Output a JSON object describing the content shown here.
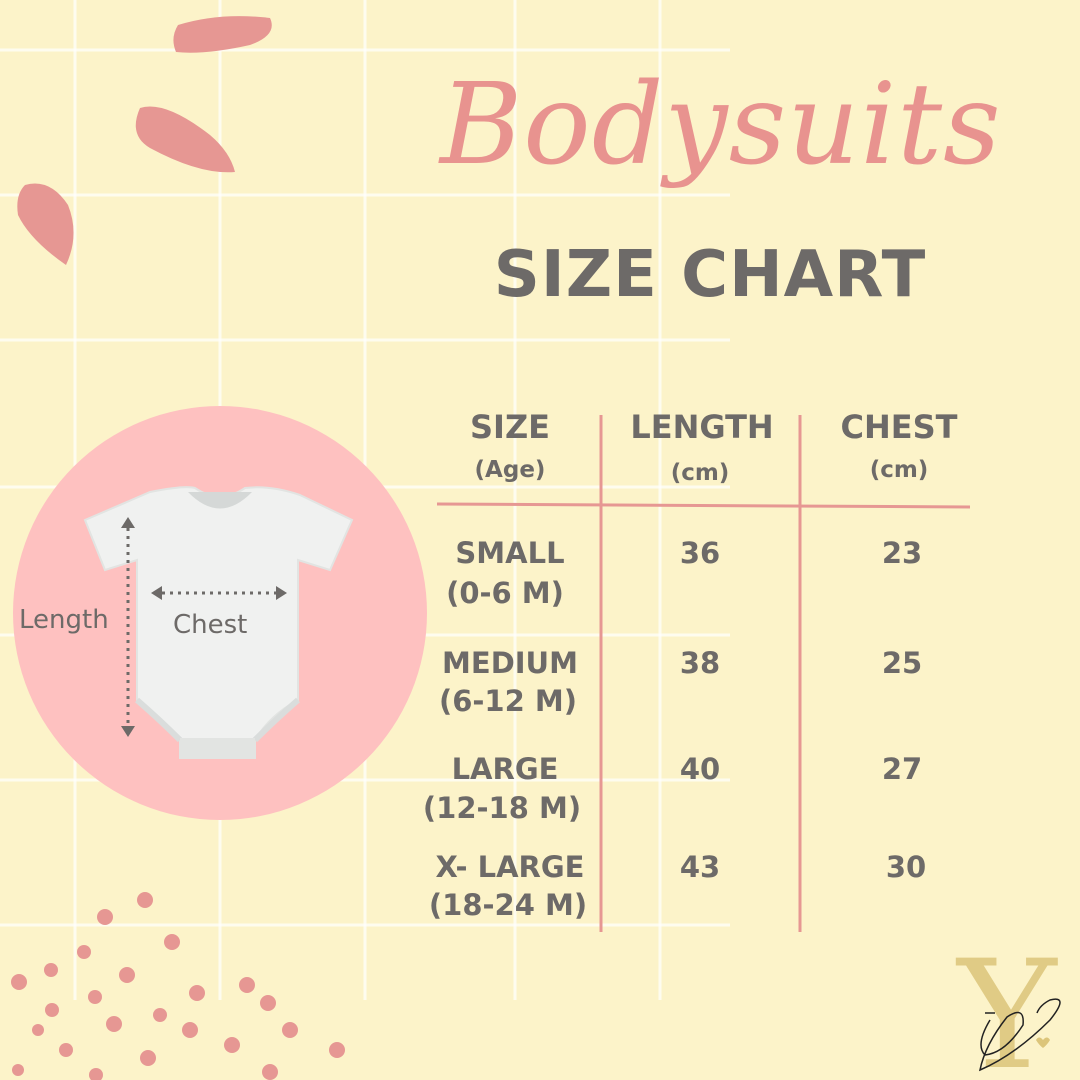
{
  "title": "Bodysuits",
  "subtitle": "SIZE CHART",
  "diagram": {
    "length_label": "Length",
    "chest_label": "Chest"
  },
  "table": {
    "headers": [
      {
        "label": "SIZE",
        "sub": "(Age)"
      },
      {
        "label": "LENGTH",
        "sub": "(cm)"
      },
      {
        "label": "CHEST",
        "sub": "(cm)"
      }
    ],
    "rows": [
      {
        "size": "SMALL",
        "age": "(0-6 M)",
        "length": "36",
        "chest": "23"
      },
      {
        "size": "MEDIUM",
        "age": "(6-12 M)",
        "length": "38",
        "chest": "25"
      },
      {
        "size": "LARGE",
        "age": "(12-18 M)",
        "length": "40",
        "chest": "27"
      },
      {
        "size": "X- LARGE",
        "age": "(18-24 M)",
        "length": "43",
        "chest": "30"
      }
    ]
  },
  "logo": {
    "text": "Y DJ"
  },
  "colors": {
    "background": "#fcf3c9",
    "accent": "#e8938f",
    "text": "#6d6a68",
    "circle": "#fec1c0"
  }
}
